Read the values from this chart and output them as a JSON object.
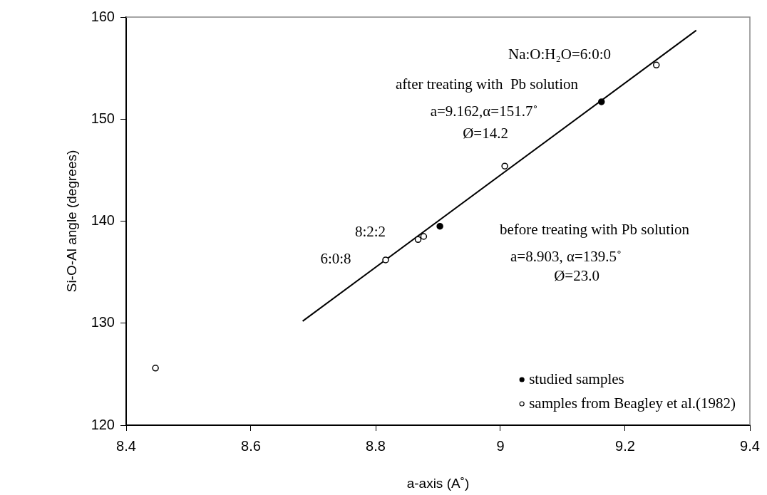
{
  "chart_data": {
    "type": "scatter",
    "xlabel": "a-axis (A˚)",
    "ylabel": "Si-O-Al angle (degrees)",
    "xlim": [
      8.4,
      9.4
    ],
    "xticks": [
      8.4,
      8.6,
      8.8,
      9,
      9.2,
      9.4
    ],
    "ylim": [
      120,
      160
    ],
    "yticks": [
      120,
      130,
      140,
      150,
      160
    ],
    "grid": false,
    "legend": "bottom right",
    "marker": "circle",
    "series": [
      {
        "name": "studied samples",
        "color": "#000000",
        "x": [
          8.903,
          9.162
        ],
        "values": [
          139.5,
          151.7
        ]
      },
      {
        "name": "samples from Beagley et al.(1982)",
        "color": "#ffffff",
        "x": [
          8.447,
          8.816,
          8.868,
          8.877,
          9.007,
          9.25
        ],
        "values": [
          125.6,
          136.2,
          138.2,
          138.5,
          145.4,
          155.3
        ]
      },
      {
        "type": "line",
        "color": "#000000",
        "marker": "none",
        "x": [
          8.683,
          9.314
        ],
        "values": [
          130.2,
          158.7
        ]
      }
    ],
    "annotations": [
      "Na:O:H₂O=6:0:0",
      "after treating with  Pb solution",
      "a=9.162,α=151.7˚",
      "Ø=14.2",
      "before treating with Pb solution",
      "a=8.903, α=139.5˚",
      "Ø=23.0",
      {
        "text": "8:2:2",
        "x": 8.868,
        "y": 138.2
      },
      {
        "text": "6:0:8",
        "x": 8.816,
        "y": 136.2
      }
    ]
  }
}
